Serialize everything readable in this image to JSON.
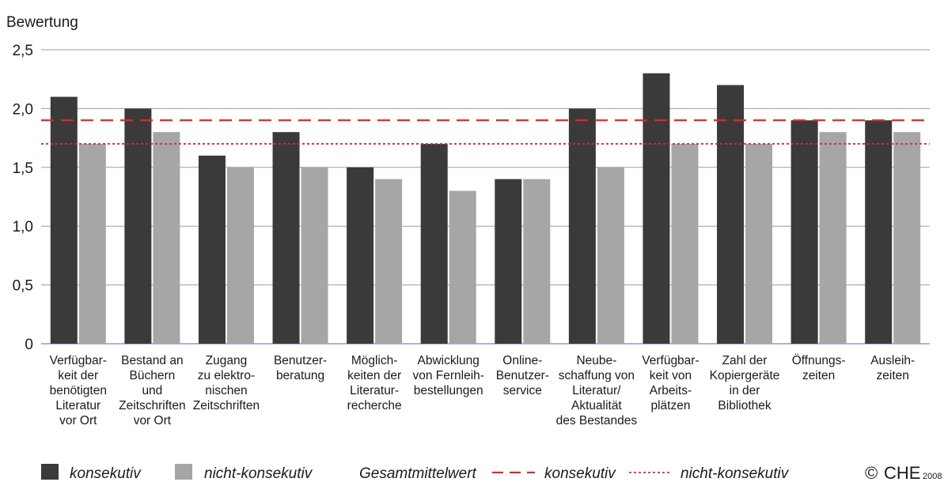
{
  "chart_data": {
    "type": "bar",
    "ylabel": "Bewertung",
    "ylim": [
      0,
      2.5
    ],
    "yticks": [
      "0",
      "0,5",
      "1,0",
      "1,5",
      "2,0",
      "2,5"
    ],
    "grid": true,
    "categories": [
      "Verfügbar-\nkeit der\nbenötigten\nLiteratur\nvor Ort",
      "Bestand an\nBüchern\nund\nZeitschriften\nvor Ort",
      "Zugang\nzu elektro-\nnischen\nZeitschriften",
      "Benutzer-\nberatung",
      "Möglich-\nkeiten der\nLiteratur-\nrecherche",
      "Abwicklung\nvon Fernleih-\nbestellungen",
      "Online-\nBenutzer-\nservice",
      "Neube-\nschaffung von\nLiteratur/\nAktualität\ndes Bestandes",
      "Verfügbar-\nkeit von\nArbeits-\nplätzen",
      "Zahl der\nKopiergeräte\nin der\nBibliothek",
      "Öffnungs-\nzeiten",
      "Ausleih-\nzeiten"
    ],
    "series": [
      {
        "name": "konsekutiv",
        "color": "#3a3a3a",
        "values": [
          2.1,
          2.0,
          1.6,
          1.8,
          1.5,
          1.7,
          1.4,
          2.0,
          2.3,
          2.2,
          1.9,
          1.9
        ]
      },
      {
        "name": "nicht-konsekutiv",
        "color": "#a6a6a6",
        "values": [
          1.7,
          1.8,
          1.5,
          1.5,
          1.4,
          1.3,
          1.4,
          1.5,
          1.7,
          1.7,
          1.8,
          1.8
        ]
      }
    ],
    "reference_lines": [
      {
        "name": "konsekutiv",
        "value": 1.9,
        "style": "dashed",
        "color": "#d92b2b"
      },
      {
        "name": "nicht-konsekutiv",
        "value": 1.7,
        "style": "dotted",
        "color": "#d92b2b"
      }
    ],
    "legend": {
      "placement": "bottom",
      "reference_title": "Gesamtmittelwert"
    },
    "gridline_color": "#9a97c8",
    "copyright_symbol": "©",
    "brand": "CHE",
    "year": "2008"
  }
}
